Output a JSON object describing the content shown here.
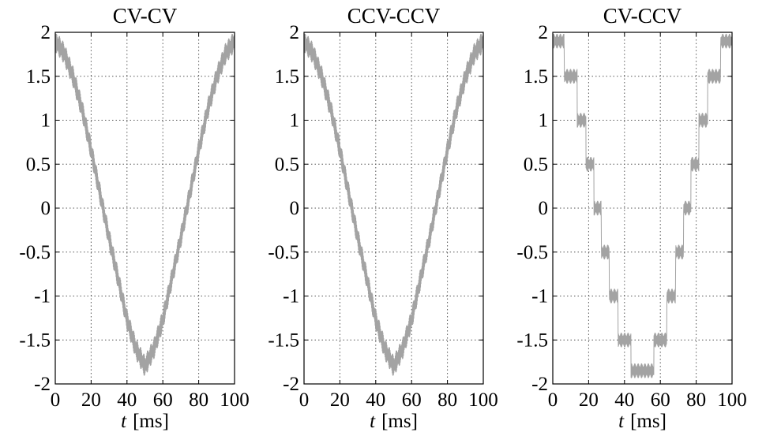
{
  "colors": {
    "signal": "#a3a3a3",
    "axis": "#000000",
    "grid": "#555555"
  },
  "chart_data": [
    {
      "type": "line",
      "title": "CV-CV",
      "xlabel": "t [ms]",
      "xlabel_var": "t",
      "xlabel_unit": "[ms]",
      "ylabel": "",
      "xlim": [
        0,
        100
      ],
      "ylim": [
        -2,
        2
      ],
      "x_ticks": [
        0,
        20,
        40,
        60,
        80,
        100
      ],
      "y_ticks": [
        2,
        1.5,
        1,
        0.5,
        0,
        -0.5,
        -1,
        -1.5,
        -2
      ],
      "y_tick_labels": [
        "2",
        "1.5",
        "1",
        "0.5",
        "0",
        "-0.5",
        "-1",
        "-1.5",
        "-2"
      ],
      "x_tick_labels": [
        "0",
        "20",
        "40",
        "60",
        "80",
        "100"
      ],
      "grid": true,
      "series": [
        {
          "color": "#a3a3a3",
          "shape": "smooth cosine with high-frequency ripple",
          "x": [
            0,
            5,
            10,
            15,
            20,
            25,
            30,
            35,
            40,
            45,
            50,
            55,
            60,
            65,
            70,
            75,
            80,
            85,
            90,
            95,
            100
          ],
          "y": [
            1.9,
            1.76,
            1.49,
            1.12,
            0.66,
            0.16,
            -0.34,
            -0.8,
            -1.27,
            -1.6,
            -1.8,
            -1.6,
            -1.27,
            -0.8,
            -0.34,
            0.16,
            0.66,
            1.12,
            1.49,
            1.76,
            1.9
          ],
          "ripple_amplitude": 0.12
        }
      ]
    },
    {
      "type": "line",
      "title": "CCV-CCV",
      "xlabel": "t [ms]",
      "xlabel_var": "t",
      "xlabel_unit": "[ms]",
      "ylabel": "",
      "xlim": [
        0,
        100
      ],
      "ylim": [
        -2,
        2
      ],
      "x_ticks": [
        0,
        20,
        40,
        60,
        80,
        100
      ],
      "y_ticks": [
        2,
        1.5,
        1,
        0.5,
        0,
        -0.5,
        -1,
        -1.5,
        -2
      ],
      "y_tick_labels": [
        "2",
        "1.5",
        "1",
        "0.5",
        "0",
        "-0.5",
        "-1",
        "-1.5",
        "-2"
      ],
      "x_tick_labels": [
        "0",
        "20",
        "40",
        "60",
        "80",
        "100"
      ],
      "grid": true,
      "series": [
        {
          "color": "#a3a3a3",
          "shape": "smooth cosine with high-frequency ripple",
          "x": [
            0,
            5,
            10,
            15,
            20,
            25,
            30,
            35,
            40,
            45,
            50,
            55,
            60,
            65,
            70,
            75,
            80,
            85,
            90,
            95,
            100
          ],
          "y": [
            1.9,
            1.76,
            1.49,
            1.12,
            0.66,
            0.16,
            -0.34,
            -0.8,
            -1.27,
            -1.6,
            -1.8,
            -1.6,
            -1.27,
            -0.8,
            -0.34,
            0.16,
            0.66,
            1.12,
            1.49,
            1.76,
            1.9
          ],
          "ripple_amplitude": 0.12
        }
      ]
    },
    {
      "type": "line",
      "title": "CV-CCV",
      "xlabel": "t [ms]",
      "xlabel_var": "t",
      "xlabel_unit": "[ms]",
      "ylabel": "",
      "xlim": [
        0,
        100
      ],
      "ylim": [
        -2,
        2
      ],
      "x_ticks": [
        0,
        20,
        40,
        60,
        80,
        100
      ],
      "y_ticks": [
        2,
        1.5,
        1,
        0.5,
        0,
        -0.5,
        -1,
        -1.5,
        -2
      ],
      "y_tick_labels": [
        "2",
        "1.5",
        "1",
        "0.5",
        "0",
        "-0.5",
        "-1",
        "-1.5",
        "-2"
      ],
      "x_tick_labels": [
        "0",
        "20",
        "40",
        "60",
        "80",
        "100"
      ],
      "grid": true,
      "series": [
        {
          "color": "#a3a3a3",
          "shape": "staircase cosine with 0.5 steps and high-frequency ripple",
          "x": [
            0,
            5,
            10,
            15,
            20,
            25,
            30,
            35,
            40,
            45,
            50,
            55,
            60,
            65,
            70,
            75,
            80,
            85,
            90,
            95,
            100
          ],
          "y": [
            1.9,
            1.75,
            1.5,
            1.0,
            0.5,
            0.0,
            -0.5,
            -1.0,
            -1.5,
            -1.75,
            -1.85,
            -1.75,
            -1.5,
            -1.0,
            -0.5,
            0.0,
            0.5,
            1.0,
            1.5,
            1.75,
            1.9
          ],
          "step": 0.5,
          "ripple_amplitude": 0.08
        }
      ]
    }
  ]
}
